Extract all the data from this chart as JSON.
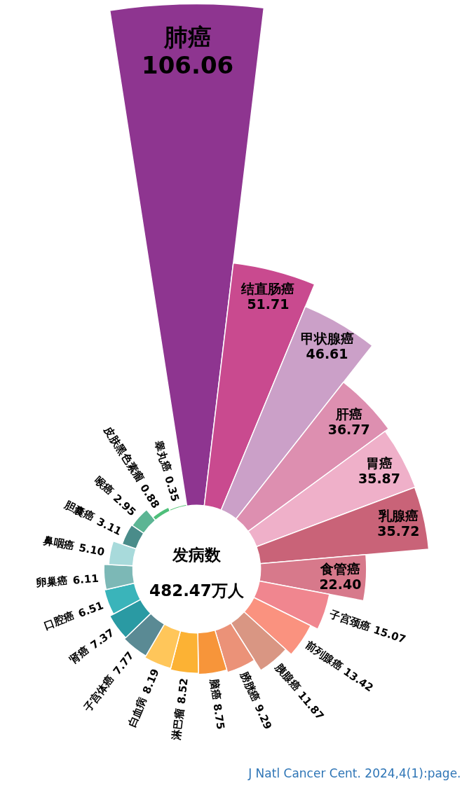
{
  "chart_data": {
    "type": "other",
    "categories": [
      "肺癌",
      "结直肠癌",
      "甲状腺癌",
      "肝癌",
      "胃癌",
      "乳腺癌",
      "食管癌",
      "子宫颈癌",
      "前列腺癌",
      "胰腺癌",
      "膀胱癌",
      "脑癌",
      "淋巴瘤",
      "白血病",
      "子宫体癌",
      "肾癌",
      "口腔癌",
      "卵巢癌",
      "鼻咽癌",
      "胆囊癌",
      "喉癌",
      "皮肤黑色素瘤",
      "睾丸癌"
    ],
    "values": [
      106.06,
      51.71,
      46.61,
      36.77,
      35.87,
      35.72,
      22.4,
      15.07,
      13.42,
      11.87,
      9.29,
      8.75,
      8.52,
      8.19,
      7.77,
      7.37,
      6.51,
      6.11,
      5.1,
      3.11,
      2.95,
      0.88,
      0.35
    ],
    "value_labels": [
      "106.06",
      "51.71",
      "46.61",
      "36.77",
      "35.87",
      "35.72",
      "22.40",
      "15.07",
      "13.42",
      "11.87",
      "9.29",
      "8.75",
      "8.52",
      "8.19",
      "7.77",
      "7.37",
      "6.51",
      "6.11",
      "5.10",
      "3.11",
      "2.95",
      "0.88",
      "0.35"
    ],
    "colors": [
      "#8e3590",
      "#c94a8f",
      "#cba0c8",
      "#dd8fb0",
      "#efb0c9",
      "#c96378",
      "#d7798b",
      "#f0868f",
      "#fa927f",
      "#d99683",
      "#eb9278",
      "#f7953a",
      "#fcb234",
      "#ffc65a",
      "#5a8a94",
      "#2a9aa3",
      "#3ab4ba",
      "#7cb8b6",
      "#a8dadb",
      "#4a8c8a",
      "#5cb594",
      "#4fbf7a",
      "#5cc77a"
    ],
    "annotations": [
      "发病数",
      "482.47万人",
      "J Natl Cancer Cent. 2024,4(1):page."
    ]
  }
}
